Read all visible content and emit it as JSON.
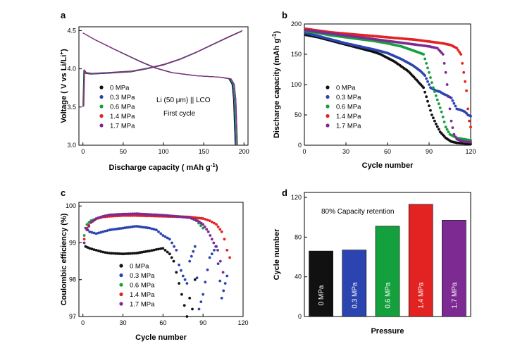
{
  "colors": {
    "s0": "#111111",
    "s1": "#2b44b0",
    "s2": "#14a03c",
    "s3": "#e32222",
    "s4": "#7d2a92"
  },
  "chart_data": [
    {
      "panel": "a",
      "type": "line",
      "xlabel": "Discharge capacity ( mAh g",
      "xlabel_sup": "-1",
      "xlabel_tail": ")",
      "ylabel": "Voltage ( V vs Li/Li",
      "ylabel_sup": "+",
      "ylabel_tail": ")",
      "xlim": [
        -5,
        205
      ],
      "ylim": [
        3.0,
        4.55
      ],
      "xticks": [
        0,
        50,
        100,
        150,
        200
      ],
      "yticks": [
        3.0,
        3.5,
        4.0,
        4.5
      ],
      "ytick_labels": [
        "3.0",
        "3.5",
        "4.0",
        "4.5"
      ],
      "annotations": [
        "Li (50 μm) || LCO",
        "First cycle"
      ],
      "legend": [
        "0 MPa",
        "0.3 MPa",
        "0.6 MPa",
        "1.4 MPa",
        "1.7 MPa"
      ],
      "series": [
        {
          "name": "0 MPa",
          "discharge_end": 189
        },
        {
          "name": "0.3 MPa",
          "discharge_end": 190
        },
        {
          "name": "0.6 MPa",
          "discharge_end": 191
        },
        {
          "name": "1.4 MPa",
          "discharge_end": 192
        },
        {
          "name": "1.7 MPa",
          "discharge_end": 192
        }
      ],
      "charge_curve": [
        [
          0,
          3.5
        ],
        [
          1,
          3.97
        ],
        [
          3,
          3.94
        ],
        [
          10,
          3.93
        ],
        [
          30,
          3.94
        ],
        [
          60,
          3.96
        ],
        [
          80,
          4.0
        ],
        [
          100,
          4.05
        ],
        [
          120,
          4.12
        ],
        [
          140,
          4.21
        ],
        [
          160,
          4.31
        ],
        [
          180,
          4.41
        ],
        [
          197,
          4.49
        ]
      ],
      "discharge_curve": [
        [
          0,
          4.47
        ],
        [
          15,
          4.38
        ],
        [
          40,
          4.25
        ],
        [
          70,
          4.1
        ],
        [
          90,
          4.01
        ],
        [
          110,
          3.95
        ],
        [
          140,
          3.91
        ],
        [
          170,
          3.89
        ],
        [
          182,
          3.87
        ],
        [
          186,
          3.8
        ],
        [
          188,
          3.6
        ],
        [
          190,
          3.0
        ]
      ]
    },
    {
      "panel": "b",
      "type": "scatter",
      "xlabel": "Cycle number",
      "ylabel": "Discharge capacity (mAh g",
      "ylabel_sup": "-1",
      "ylabel_tail": ")",
      "xlim": [
        0,
        120
      ],
      "ylim": [
        0,
        200
      ],
      "xticks": [
        0,
        30,
        60,
        90,
        120
      ],
      "yticks": [
        0,
        50,
        100,
        150,
        200
      ],
      "legend": [
        "0 MPa",
        "0.3 MPa",
        "0.6 MPa",
        "1.4 MPa",
        "1.7 MPa"
      ],
      "series": [
        {
          "name": "0 MPa",
          "points": [
            [
              1,
              182
            ],
            [
              10,
              178
            ],
            [
              20,
              172
            ],
            [
              30,
              166
            ],
            [
              40,
              160
            ],
            [
              50,
              154
            ],
            [
              55,
              150
            ],
            [
              60,
              144
            ],
            [
              65,
              138
            ],
            [
              70,
              130
            ],
            [
              75,
              122
            ],
            [
              80,
              110
            ],
            [
              84,
              100
            ],
            [
              86,
              95
            ],
            [
              88,
              80
            ],
            [
              90,
              65
            ],
            [
              92,
              50
            ],
            [
              95,
              35
            ],
            [
              98,
              22
            ],
            [
              102,
              12
            ],
            [
              106,
              6
            ],
            [
              110,
              4
            ],
            [
              115,
              3
            ],
            [
              120,
              2
            ]
          ]
        },
        {
          "name": "0.3 MPa",
          "points": [
            [
              1,
              185
            ],
            [
              10,
              180
            ],
            [
              20,
              174
            ],
            [
              30,
              168
            ],
            [
              40,
              163
            ],
            [
              50,
              158
            ],
            [
              60,
              152
            ],
            [
              70,
              142
            ],
            [
              78,
              132
            ],
            [
              84,
              122
            ],
            [
              87,
              115
            ],
            [
              89,
              105
            ],
            [
              91,
              95
            ],
            [
              95,
              90
            ],
            [
              98,
              88
            ],
            [
              100,
              85
            ],
            [
              103,
              82
            ],
            [
              106,
              78
            ],
            [
              110,
              60
            ],
            [
              113,
              58
            ],
            [
              116,
              55
            ],
            [
              118,
              50
            ],
            [
              120,
              48
            ]
          ]
        },
        {
          "name": "0.6 MPa",
          "points": [
            [
              1,
              188
            ],
            [
              10,
              185
            ],
            [
              20,
              181
            ],
            [
              30,
              178
            ],
            [
              40,
              175
            ],
            [
              50,
              172
            ],
            [
              60,
              168
            ],
            [
              70,
              163
            ],
            [
              80,
              155
            ],
            [
              86,
              150
            ],
            [
              90,
              120
            ],
            [
              93,
              95
            ],
            [
              96,
              75
            ],
            [
              99,
              55
            ],
            [
              102,
              30
            ],
            [
              105,
              18
            ],
            [
              110,
              12
            ],
            [
              115,
              10
            ],
            [
              120,
              8
            ]
          ]
        },
        {
          "name": "1.4 MPa",
          "points": [
            [
              1,
              192
            ],
            [
              10,
              189
            ],
            [
              20,
              186
            ],
            [
              30,
              184
            ],
            [
              40,
              182
            ],
            [
              50,
              180
            ],
            [
              60,
              178
            ],
            [
              70,
              176
            ],
            [
              80,
              174
            ],
            [
              90,
              171
            ],
            [
              100,
              168
            ],
            [
              106,
              165
            ],
            [
              110,
              160
            ],
            [
              113,
              150
            ],
            [
              115,
              120
            ],
            [
              117,
              90
            ],
            [
              118,
              60
            ],
            [
              119,
              40
            ],
            [
              120,
              30
            ]
          ]
        },
        {
          "name": "1.7 MPa",
          "points": [
            [
              1,
              190
            ],
            [
              10,
              187
            ],
            [
              20,
              184
            ],
            [
              30,
              181
            ],
            [
              40,
              178
            ],
            [
              50,
              175
            ],
            [
              60,
              172
            ],
            [
              70,
              169
            ],
            [
              80,
              166
            ],
            [
              90,
              163
            ],
            [
              96,
              160
            ],
            [
              100,
              150
            ],
            [
              102,
              120
            ],
            [
              104,
              80
            ],
            [
              106,
              40
            ],
            [
              108,
              18
            ],
            [
              110,
              10
            ],
            [
              115,
              6
            ],
            [
              120,
              5
            ]
          ]
        }
      ]
    },
    {
      "panel": "c",
      "type": "scatter",
      "xlabel": "Cycle number",
      "ylabel": "Coulombic efficiency (%)",
      "xlim": [
        -3,
        120
      ],
      "ylim": [
        97,
        100.1
      ],
      "xticks": [
        0,
        30,
        60,
        90,
        120
      ],
      "yticks": [
        97,
        98,
        99,
        100
      ],
      "legend": [
        "0 MPa",
        "0.3 MPa",
        "0.6 MPa",
        "1.4 MPa",
        "1.7 MPa"
      ],
      "series": [
        {
          "name": "0 MPa",
          "points": [
            [
              2,
              98.9
            ],
            [
              5,
              98.85
            ],
            [
              10,
              98.8
            ],
            [
              15,
              98.75
            ],
            [
              20,
              98.72
            ],
            [
              30,
              98.7
            ],
            [
              40,
              98.72
            ],
            [
              50,
              98.78
            ],
            [
              55,
              98.82
            ],
            [
              60,
              98.85
            ],
            [
              65,
              98.7
            ],
            [
              68,
              98.5
            ],
            [
              70,
              98.2
            ],
            [
              72,
              97.9
            ],
            [
              74,
              97.6
            ],
            [
              76,
              97.3
            ],
            [
              78,
              97.0
            ],
            [
              80,
              97.5
            ],
            [
              82,
              97.2
            ],
            [
              84,
              98.0
            ]
          ]
        },
        {
          "name": "0.3 MPa",
          "points": [
            [
              2,
              99.4
            ],
            [
              5,
              99.3
            ],
            [
              10,
              99.25
            ],
            [
              15,
              99.3
            ],
            [
              20,
              99.35
            ],
            [
              30,
              99.4
            ],
            [
              40,
              99.45
            ],
            [
              50,
              99.4
            ],
            [
              55,
              99.35
            ],
            [
              60,
              99.2
            ],
            [
              65,
              99.1
            ],
            [
              70,
              98.8
            ],
            [
              72,
              98.4
            ],
            [
              75,
              98.1
            ],
            [
              78,
              97.9
            ],
            [
              80,
              98.5
            ],
            [
              84,
              98.9
            ],
            [
              87,
              97.2
            ],
            [
              90,
              97.6
            ],
            [
              95,
              98.6
            ],
            [
              100,
              98.9
            ],
            [
              104,
              97.5
            ],
            [
              108,
              98.1
            ]
          ]
        },
        {
          "name": "0.6 MPa",
          "points": [
            [
              1,
              99.2
            ],
            [
              3,
              99.5
            ],
            [
              6,
              99.6
            ],
            [
              10,
              99.65
            ],
            [
              15,
              99.72
            ],
            [
              20,
              99.75
            ],
            [
              30,
              99.77
            ],
            [
              40,
              99.78
            ],
            [
              50,
              99.76
            ],
            [
              60,
              99.74
            ],
            [
              70,
              99.72
            ],
            [
              80,
              99.7
            ],
            [
              85,
              99.6
            ],
            [
              90,
              99.4
            ]
          ]
        },
        {
          "name": "1.4 MPa",
          "points": [
            [
              1,
              99.1
            ],
            [
              3,
              99.4
            ],
            [
              6,
              99.55
            ],
            [
              10,
              99.65
            ],
            [
              15,
              99.7
            ],
            [
              20,
              99.72
            ],
            [
              30,
              99.74
            ],
            [
              40,
              99.74
            ],
            [
              50,
              99.73
            ],
            [
              60,
              99.72
            ],
            [
              70,
              99.71
            ],
            [
              80,
              99.7
            ],
            [
              90,
              99.66
            ],
            [
              95,
              99.6
            ],
            [
              100,
              99.5
            ],
            [
              104,
              99.3
            ],
            [
              106,
              99.1
            ],
            [
              108,
              98.8
            ],
            [
              110,
              98.6
            ]
          ]
        },
        {
          "name": "1.7 MPa",
          "points": [
            [
              1,
              99.0
            ],
            [
              3,
              99.35
            ],
            [
              6,
              99.55
            ],
            [
              10,
              99.66
            ],
            [
              15,
              99.72
            ],
            [
              20,
              99.76
            ],
            [
              30,
              99.78
            ],
            [
              40,
              99.79
            ],
            [
              50,
              99.77
            ],
            [
              60,
              99.75
            ],
            [
              70,
              99.72
            ],
            [
              80,
              99.68
            ],
            [
              86,
              99.6
            ],
            [
              90,
              99.5
            ],
            [
              94,
              99.3
            ],
            [
              98,
              99.0
            ],
            [
              101,
              98.8
            ],
            [
              103,
              98.5
            ],
            [
              105,
              98.2
            ]
          ]
        }
      ]
    },
    {
      "panel": "d",
      "type": "bar",
      "xlabel": "Pressure",
      "ylabel": "Cycle number",
      "annotation": "80% Capacity retention",
      "ylim": [
        0,
        125
      ],
      "yticks": [
        0,
        40,
        80,
        120
      ],
      "categories": [
        "0 MPa",
        "0.3 MPa",
        "0.6 MPa",
        "1.4 MPa",
        "1.7 MPa"
      ],
      "values": [
        66,
        67,
        91,
        113,
        97
      ]
    }
  ]
}
